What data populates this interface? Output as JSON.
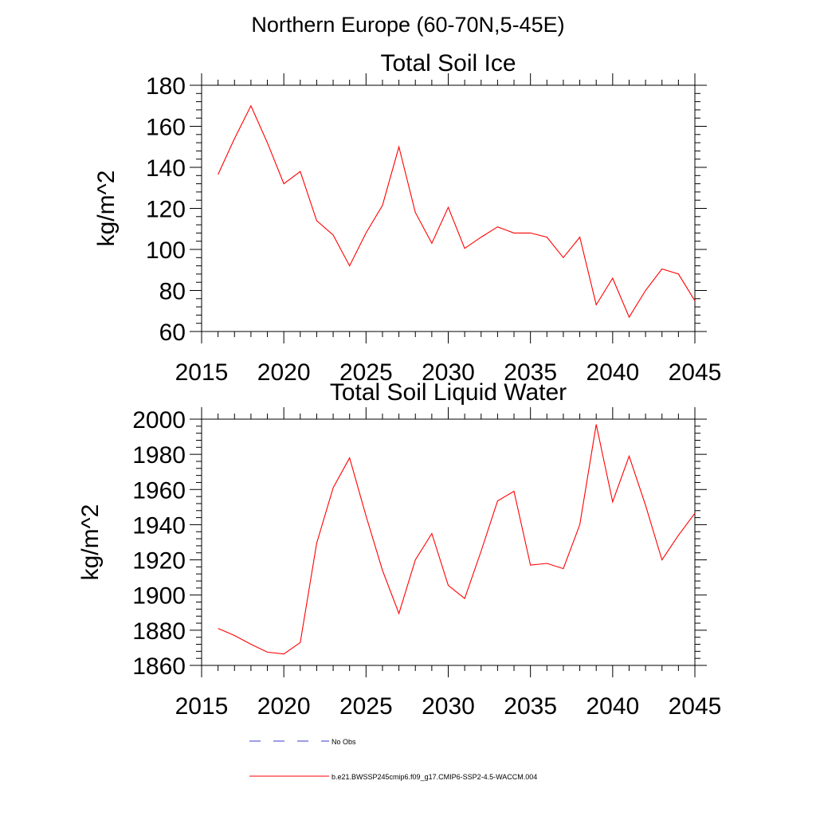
{
  "figure": {
    "suptitle": "Northern Europe (60-70N,5-45E)"
  },
  "chart_data": [
    {
      "type": "line",
      "title": "Total Soil Ice",
      "xlabel": "",
      "ylabel": "kg/m^2",
      "xlim": [
        2015,
        2045
      ],
      "ylim": [
        60,
        180
      ],
      "xticks": [
        2015,
        2020,
        2025,
        2030,
        2035,
        2040,
        2045
      ],
      "yticks": [
        60,
        80,
        100,
        120,
        140,
        160,
        180
      ],
      "series": [
        {
          "name": "b.e21.BWSSP245cmip6.f09_g17.CMIP6-SSP2-4.5-WACCM.004",
          "color": "#ff0000",
          "x": [
            2016,
            2017,
            2018,
            2019,
            2020,
            2021,
            2022,
            2023,
            2024,
            2025,
            2026,
            2027,
            2028,
            2029,
            2030,
            2031,
            2032,
            2033,
            2034,
            2035,
            2036,
            2037,
            2038,
            2039,
            2040,
            2041,
            2042,
            2043,
            2044,
            2045
          ],
          "y": [
            136.5,
            154,
            170,
            152,
            132,
            138,
            114,
            107,
            92,
            108,
            121.5,
            150,
            118,
            103,
            120.5,
            100.5,
            106,
            111,
            108,
            108,
            106,
            96,
            106,
            73,
            86,
            67,
            80,
            90.5,
            88,
            75
          ]
        }
      ]
    },
    {
      "type": "line",
      "title": "Total Soil Liquid Water",
      "xlabel": "",
      "ylabel": "kg/m^2",
      "xlim": [
        2015,
        2045
      ],
      "ylim": [
        1860,
        2000
      ],
      "xticks": [
        2015,
        2020,
        2025,
        2030,
        2035,
        2040,
        2045
      ],
      "yticks": [
        1860,
        1880,
        1900,
        1920,
        1940,
        1960,
        1980,
        2000
      ],
      "series": [
        {
          "name": "b.e21.BWSSP245cmip6.f09_g17.CMIP6-SSP2-4.5-WACCM.004",
          "color": "#ff0000",
          "x": [
            2016,
            2017,
            2018,
            2019,
            2020,
            2021,
            2022,
            2023,
            2024,
            2025,
            2026,
            2027,
            2028,
            2029,
            2030,
            2031,
            2032,
            2033,
            2034,
            2035,
            2036,
            2037,
            2038,
            2039,
            2040,
            2041,
            2042,
            2043,
            2044,
            2045
          ],
          "y": [
            1881,
            1877,
            1872,
            1867.5,
            1866.5,
            1873,
            1929.5,
            1961,
            1978,
            1945,
            1914,
            1889.5,
            1920,
            1935,
            1905.5,
            1898,
            1925,
            1953.5,
            1959,
            1917,
            1918,
            1915,
            1940,
            1997,
            1953,
            1979,
            1951,
            1920,
            1934,
            1946.5
          ]
        }
      ]
    }
  ],
  "legend": {
    "placement": "bottom",
    "entries": [
      {
        "label": "No Obs",
        "color": "#3a3ad0",
        "style": "dashed"
      },
      {
        "label": "b.e21.BWSSP245cmip6.f09_g17.CMIP6-SSP2-4.5-WACCM.004",
        "color": "#ff0000",
        "style": "solid"
      }
    ]
  }
}
